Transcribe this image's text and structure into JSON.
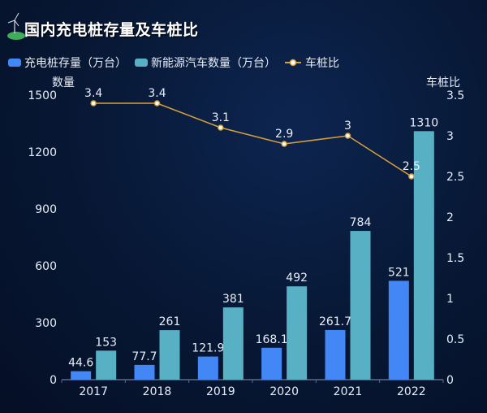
{
  "title": "国内充电桩存量及车桩比",
  "legend": [
    {
      "label": "充电桩存量（万台）",
      "color": "#4287f5"
    },
    {
      "label": "新能源汽车数量（万台）",
      "color": "#57b0c3"
    },
    {
      "label": "车桩比",
      "color": "#e0a030"
    }
  ],
  "colors": {
    "line": "#d9a03a",
    "axis": "#5a6b8a",
    "text": "#e8eef8"
  },
  "chart_data": {
    "type": "bar",
    "title": "国内充电桩存量及车桩比",
    "categories": [
      "2017",
      "2018",
      "2019",
      "2020",
      "2021",
      "2022"
    ],
    "series": [
      {
        "name": "充电桩存量（万台）",
        "type": "bar",
        "axis": "left",
        "values": [
          44.6,
          77.7,
          121.9,
          168.1,
          261.7,
          521
        ],
        "labels": [
          "44.6",
          "77.7",
          "121.9",
          "168.1",
          "261.7",
          "521"
        ]
      },
      {
        "name": "新能源汽车数量（万台）",
        "type": "bar",
        "axis": "left",
        "values": [
          153,
          261,
          381,
          492,
          784,
          1310
        ],
        "labels": [
          "153",
          "261",
          "381",
          "492",
          "784",
          "1310"
        ]
      },
      {
        "name": "车桩比",
        "type": "line",
        "axis": "right",
        "values": [
          3.4,
          3.4,
          3.1,
          2.9,
          3,
          2.5
        ],
        "labels": [
          "3.4",
          "3.4",
          "3.1",
          "2.9",
          "3",
          "2.5"
        ]
      }
    ],
    "ylabel": "数量",
    "ylim": [
      0,
      1500
    ],
    "yticks": [
      "0",
      "300",
      "600",
      "900",
      "1200",
      "1500"
    ],
    "y2label": "车桩比",
    "y2lim": [
      0,
      3.5
    ],
    "y2ticks": [
      "0",
      "0.5",
      "1",
      "1.5",
      "2",
      "2.5",
      "3",
      "3.5"
    ],
    "grid": false,
    "legend_position": "top-left"
  }
}
